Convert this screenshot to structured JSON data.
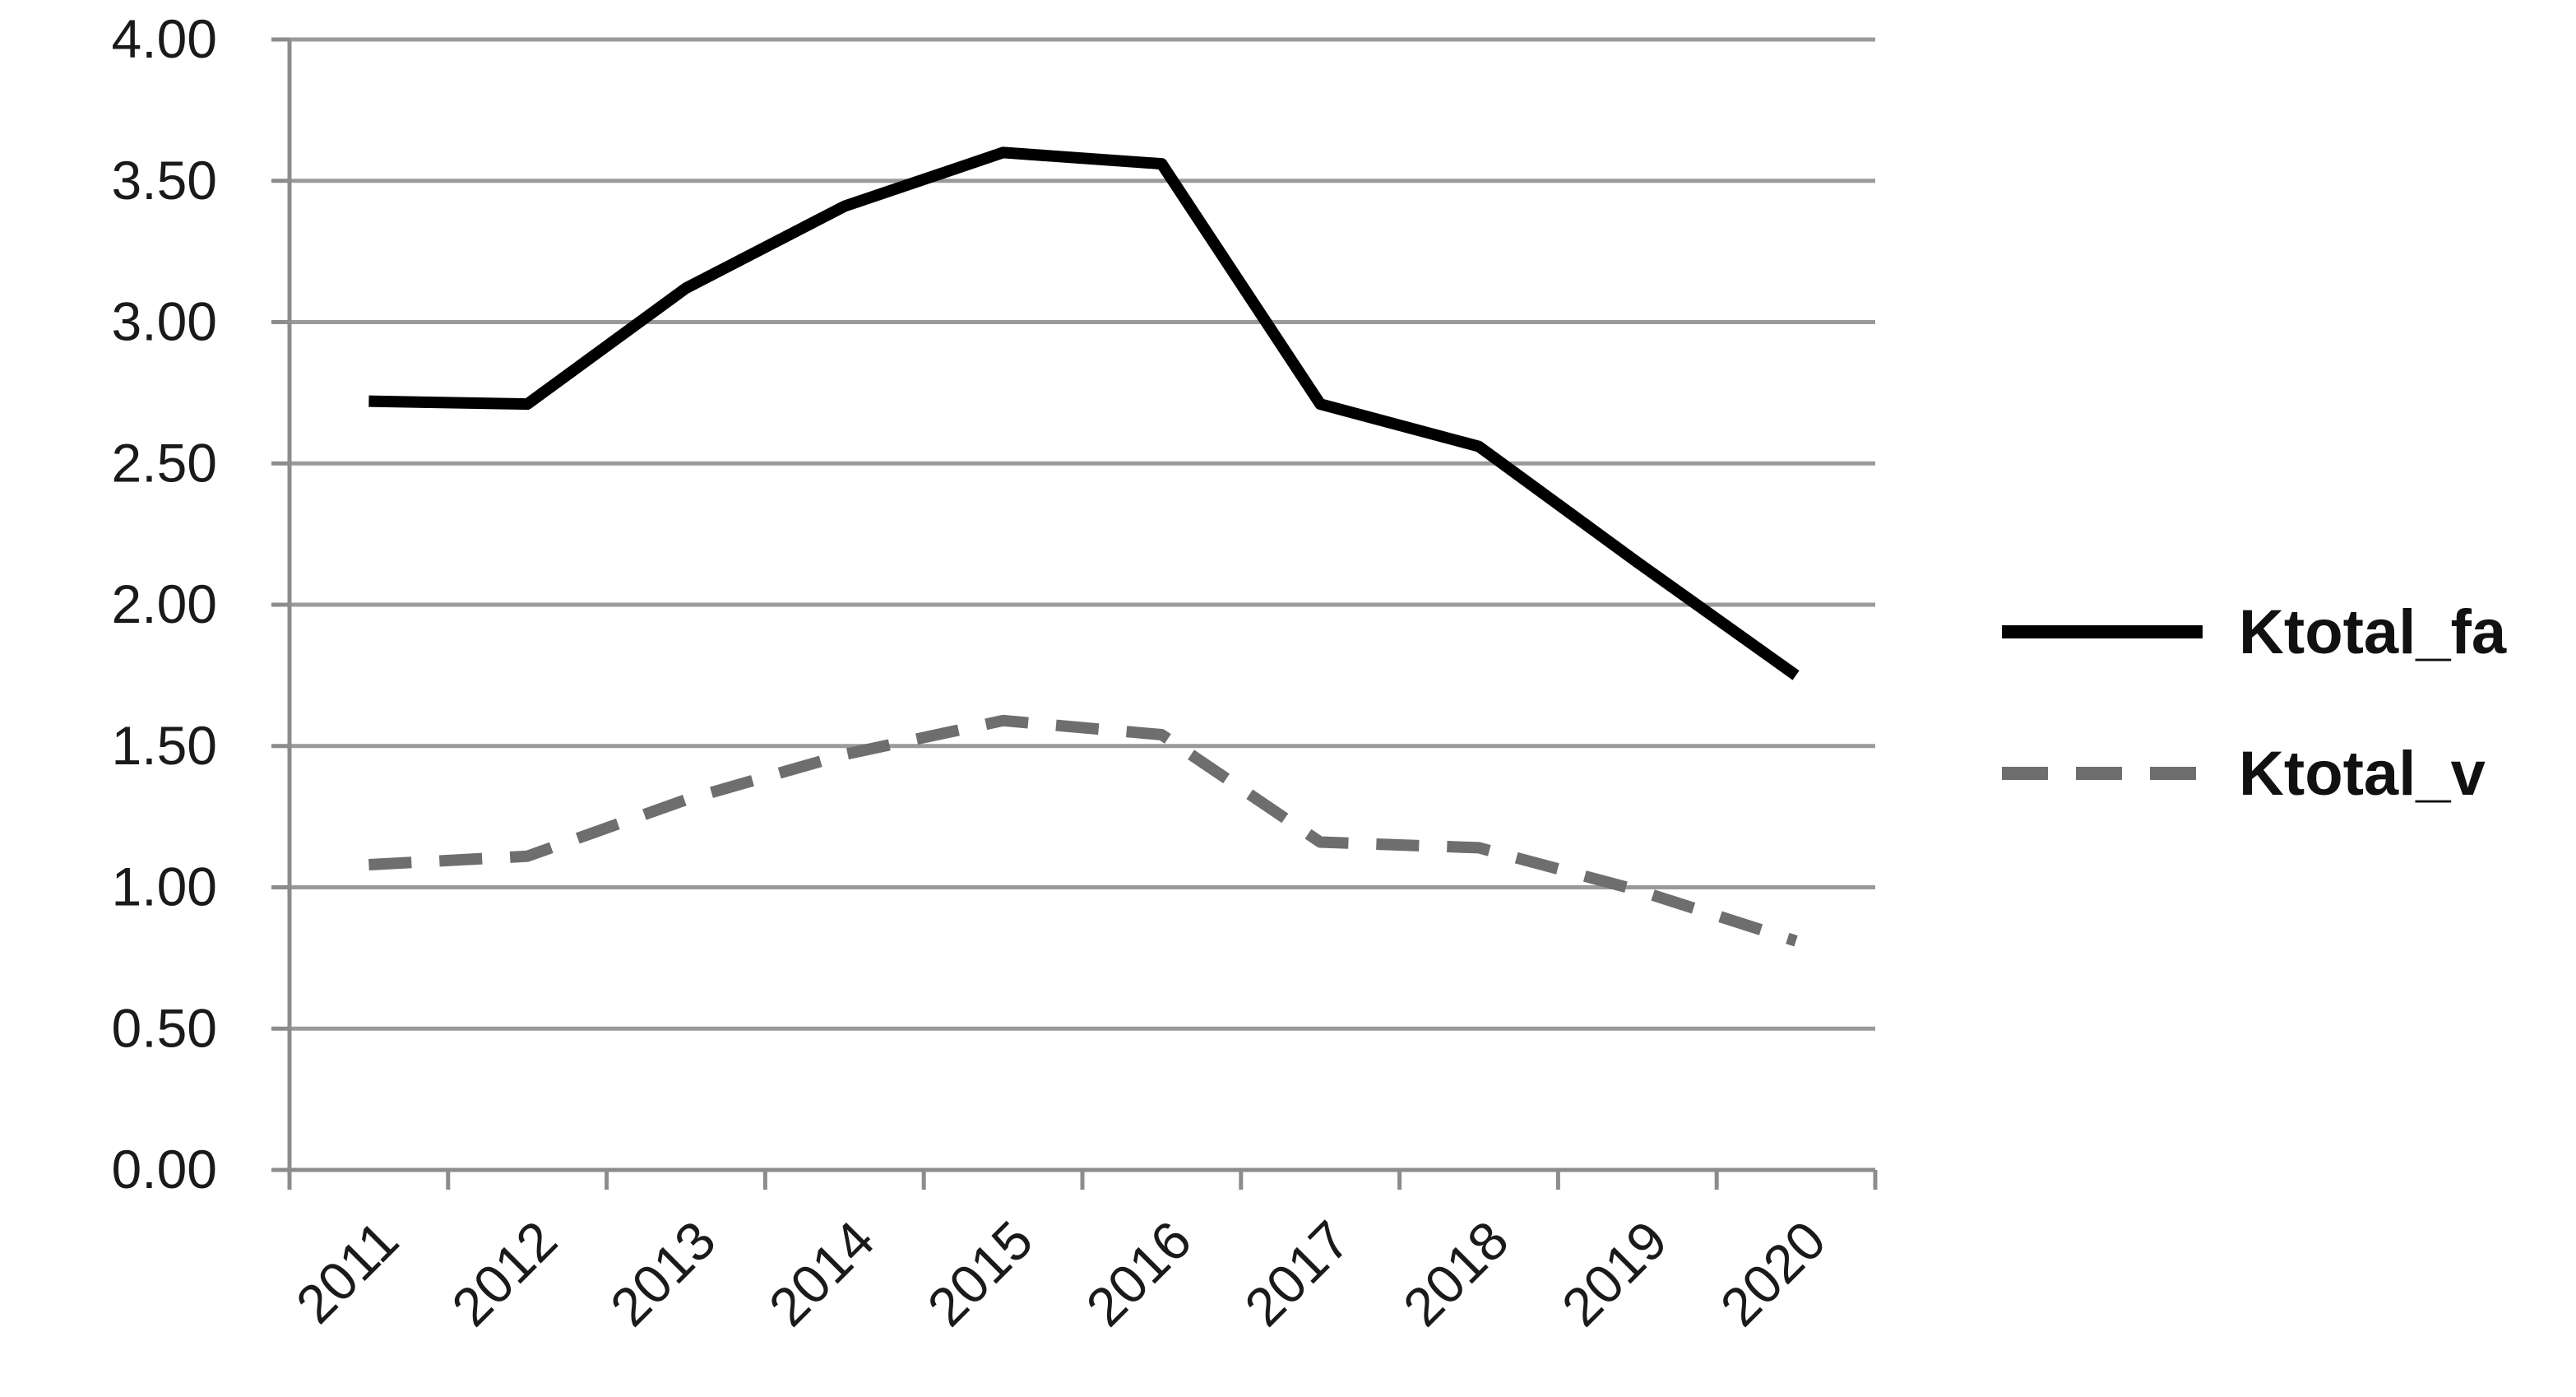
{
  "chart_data": {
    "type": "line",
    "title": "",
    "xlabel": "",
    "ylabel": "",
    "categories": [
      "2011",
      "2012",
      "2013",
      "2014",
      "2015",
      "2016",
      "2017",
      "2018",
      "2019",
      "2020"
    ],
    "y_ticks": [
      "0.00",
      "0.50",
      "1.00",
      "1.50",
      "2.00",
      "2.50",
      "3.00",
      "3.50",
      "4.00"
    ],
    "ylim": [
      0,
      4
    ],
    "grid": "horizontal",
    "legend_position": "right",
    "series": [
      {
        "name": "Ktotal_fa",
        "values": [
          2.72,
          2.71,
          3.12,
          3.41,
          3.6,
          3.56,
          2.71,
          2.56,
          2.15,
          1.75
        ],
        "color": "#000000",
        "style": "solid"
      },
      {
        "name": "Ktotal_v",
        "values": [
          1.08,
          1.11,
          1.31,
          1.47,
          1.59,
          1.54,
          1.16,
          1.14,
          0.99,
          0.81
        ],
        "color": "#6e6e6e",
        "style": "dashed"
      }
    ]
  }
}
